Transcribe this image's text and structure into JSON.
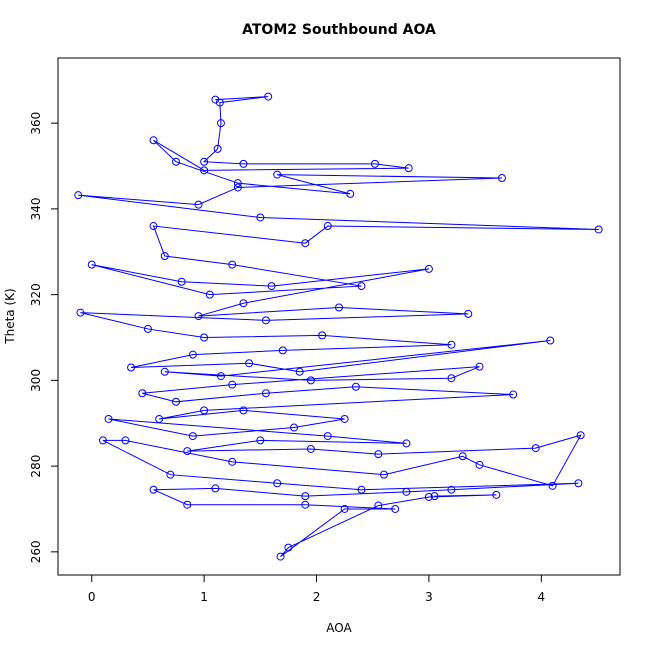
{
  "chart_data": {
    "type": "scatter",
    "title": "ATOM2 Southbound AOA",
    "x_label": "AOA",
    "y_label": "Theta (K)",
    "connected": true,
    "x": [
      1.1,
      1.57,
      1.14,
      1.15,
      1.12,
      1.0,
      1.35,
      2.52,
      2.82,
      1.0,
      0.55,
      0.75,
      1.3,
      2.3,
      1.65,
      3.65,
      1.3,
      0.95,
      -0.12,
      1.5,
      4.51,
      2.1,
      1.9,
      0.55,
      0.65,
      1.25,
      2.4,
      1.05,
      0.0,
      0.8,
      1.6,
      3.0,
      1.35,
      0.95,
      2.2,
      3.35,
      1.55,
      -0.1,
      0.5,
      1.0,
      2.05,
      3.2,
      1.7,
      0.9,
      0.35,
      1.4,
      1.85,
      4.08,
      1.15,
      0.65,
      1.95,
      3.2,
      3.45,
      1.25,
      0.45,
      0.75,
      1.55,
      2.35,
      3.75,
      1.0,
      0.6,
      1.35,
      2.25,
      1.8,
      0.9,
      0.15,
      2.1,
      2.8,
      1.5,
      0.85,
      1.95,
      2.55,
      3.95,
      4.35,
      4.1,
      3.45,
      3.3,
      2.6,
      1.25,
      0.3,
      0.1,
      0.7,
      1.65,
      2.4,
      4.33,
      3.2,
      2.8,
      1.9,
      1.1,
      0.55,
      0.85,
      1.9,
      2.7,
      2.25,
      1.68,
      1.75,
      2.55,
      3.0,
      3.6,
      3.05
    ],
    "series": [
      {
        "name": "Theta",
        "color": "#0000ff",
        "values": [
          365.5,
          366.2,
          364.8,
          360,
          354,
          351,
          350.5,
          350.5,
          349.5,
          349,
          356,
          351,
          346,
          343.5,
          348,
          347.2,
          345,
          341,
          343.2,
          338,
          335.2,
          336,
          332,
          336,
          329,
          327,
          322,
          320,
          327,
          323,
          322,
          326,
          318,
          315,
          317,
          315.5,
          314,
          315.8,
          312,
          310,
          310.5,
          308.3,
          307,
          306,
          303,
          304,
          302,
          309.3,
          301,
          302,
          300,
          300.5,
          303.2,
          299,
          297,
          295,
          297,
          298.5,
          296.7,
          293,
          291,
          293,
          291,
          289,
          287,
          291,
          287,
          285.3,
          286,
          283.5,
          284,
          282.8,
          284.2,
          287.2,
          275.4,
          280.3,
          282.3,
          278,
          281,
          286,
          286,
          278,
          276,
          274.5,
          276,
          274.5,
          274,
          273,
          274.8,
          274.5,
          271,
          271,
          270,
          270,
          258.9,
          261,
          270.8,
          272.8,
          273.3,
          273
        ]
      }
    ],
    "xlim": [
      -0.3,
      4.7
    ],
    "xticks": [
      0,
      1,
      2,
      3,
      4
    ],
    "ylim": [
      254.6,
      375.2
    ],
    "yticks": [
      260,
      280,
      300,
      320,
      340,
      360
    ]
  }
}
